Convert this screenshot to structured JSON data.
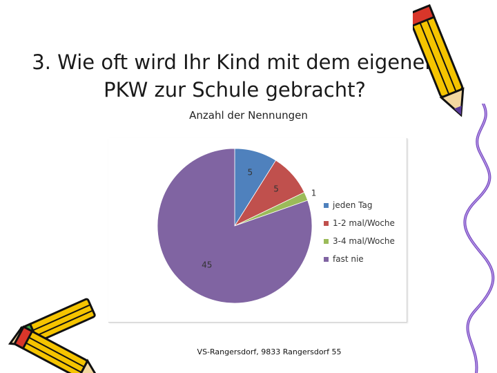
{
  "slide": {
    "title_line1": "3. Wie oft wird Ihr Kind mit dem eigenen",
    "title_line2": "PKW zur Schule gebracht?",
    "footer": "VS-Rangersdorf, 9833 Rangersdorf 55"
  },
  "chart_data": {
    "type": "pie",
    "title": "Anzahl der Nennungen",
    "labels": [
      "jeden Tag",
      "1-2 mal/Woche",
      "3-4 mal/Woche",
      "fast nie"
    ],
    "values": [
      5,
      5,
      1,
      45
    ],
    "colors": [
      "#4f81bd",
      "#c0504d",
      "#9bbb59",
      "#8064a2"
    ],
    "data_labels": [
      "5",
      "5",
      "1",
      "45"
    ],
    "legend_position": "right"
  },
  "decorations": {
    "pencil_top_right": "pencil-icon",
    "pencils_bottom_left": "pencils-icon",
    "squiggle_right": "squiggle-line"
  }
}
